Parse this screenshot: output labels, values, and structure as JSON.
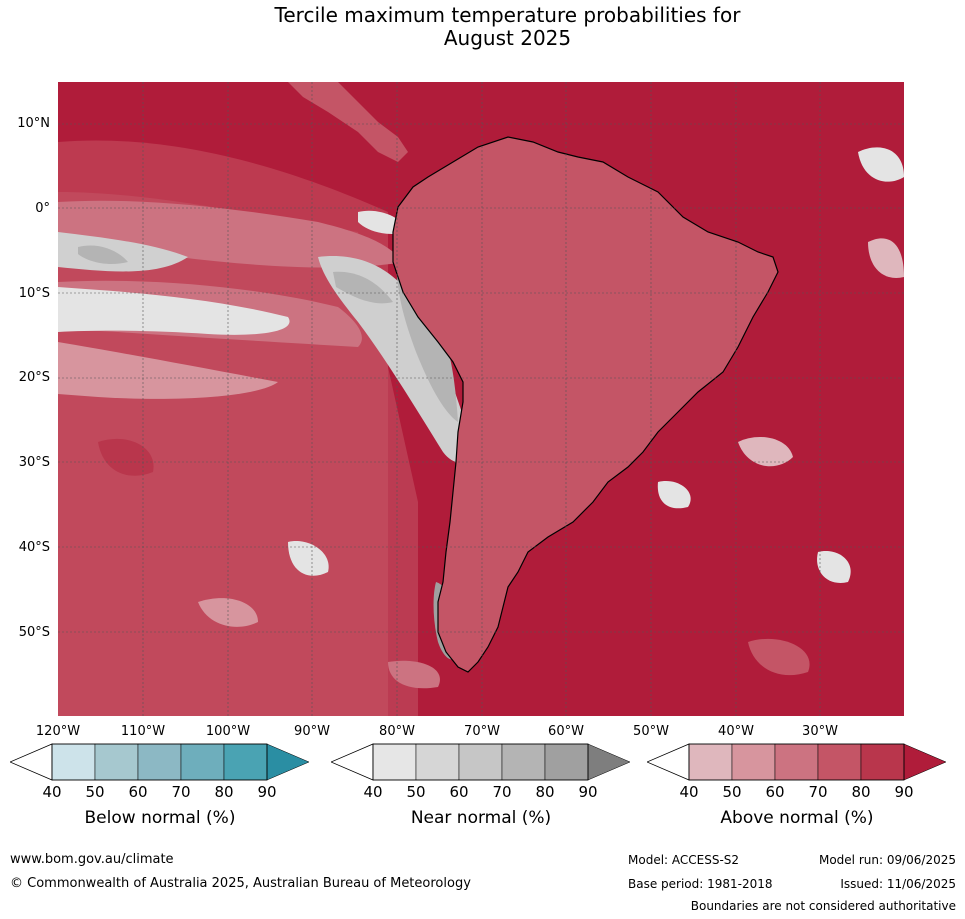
{
  "title_line1": "Tercile maximum temperature probabilities for",
  "title_line2": "August 2025",
  "lat_labels": [
    "10°N",
    "0°",
    "10°S",
    "20°S",
    "30°S",
    "40°S",
    "50°S"
  ],
  "lon_labels": [
    "120°W",
    "110°W",
    "100°W",
    "90°W",
    "80°W",
    "70°W",
    "60°W",
    "50°W",
    "40°W",
    "30°W"
  ],
  "colorbars": [
    {
      "name": "below",
      "title": "Below normal (%)",
      "ticks": [
        "40",
        "50",
        "60",
        "70",
        "80",
        "90"
      ],
      "colors": [
        "#cde3ea",
        "#a6c8cf",
        "#8cb8c4",
        "#6eaebc",
        "#4aa3b3",
        "#2a8ea3"
      ]
    },
    {
      "name": "near",
      "title": "Near normal (%)",
      "ticks": [
        "40",
        "50",
        "60",
        "70",
        "80",
        "90"
      ],
      "colors": [
        "#e6e6e6",
        "#d6d6d6",
        "#c6c6c6",
        "#b4b4b4",
        "#a0a0a0",
        "#7e7e7e"
      ]
    },
    {
      "name": "above",
      "title": "Above normal (%)",
      "ticks": [
        "40",
        "50",
        "60",
        "70",
        "80",
        "90"
      ],
      "colors": [
        "#dfb7bd",
        "#d7959e",
        "#cc7381",
        "#c45566",
        "#b9364c",
        "#b01c3a"
      ]
    }
  ],
  "footer": {
    "url": "www.bom.gov.au/climate",
    "copyright": "© Commonwealth of Australia 2025, Australian Bureau of Meteorology",
    "model": "Model: ACCESS-S2",
    "model_run": "Model run: 09/06/2025",
    "base_period": "Base period: 1981-2018",
    "issued": "Issued: 11/06/2025",
    "disclaimer": "Boundaries are not considered authoritative"
  },
  "map_colors": {
    "above_90": "#b01c3a",
    "above_80": "#bd3a50",
    "above_70": "#c45566",
    "above_60": "#cc7381",
    "above_50": "#d7959e",
    "above_40": "#dfb7bd",
    "near_50": "#e4e4e4",
    "near_60": "#cfcfcf",
    "near_70": "#b4b4b4",
    "white": "#ffffff"
  }
}
